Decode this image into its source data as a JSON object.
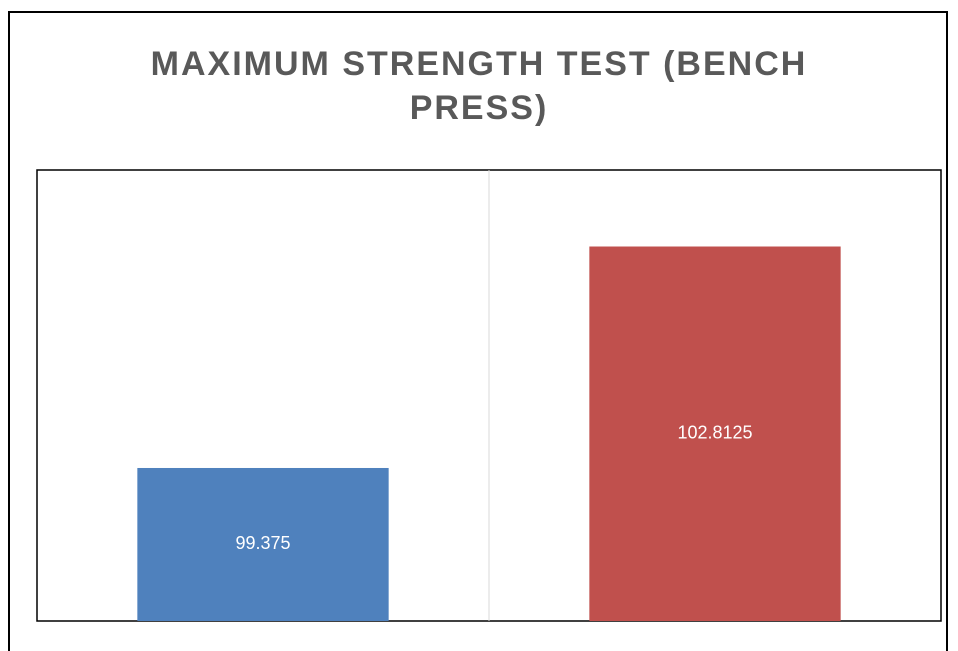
{
  "chart_data": {
    "type": "bar",
    "title": "MAXIMUM STRENGTH TEST (BENCH PRESS)",
    "categories": [
      null,
      null
    ],
    "values": [
      99.375,
      102.8125
    ],
    "colors": [
      "#4f81bd",
      "#c0504d"
    ],
    "ylim": [
      97,
      104
    ]
  }
}
